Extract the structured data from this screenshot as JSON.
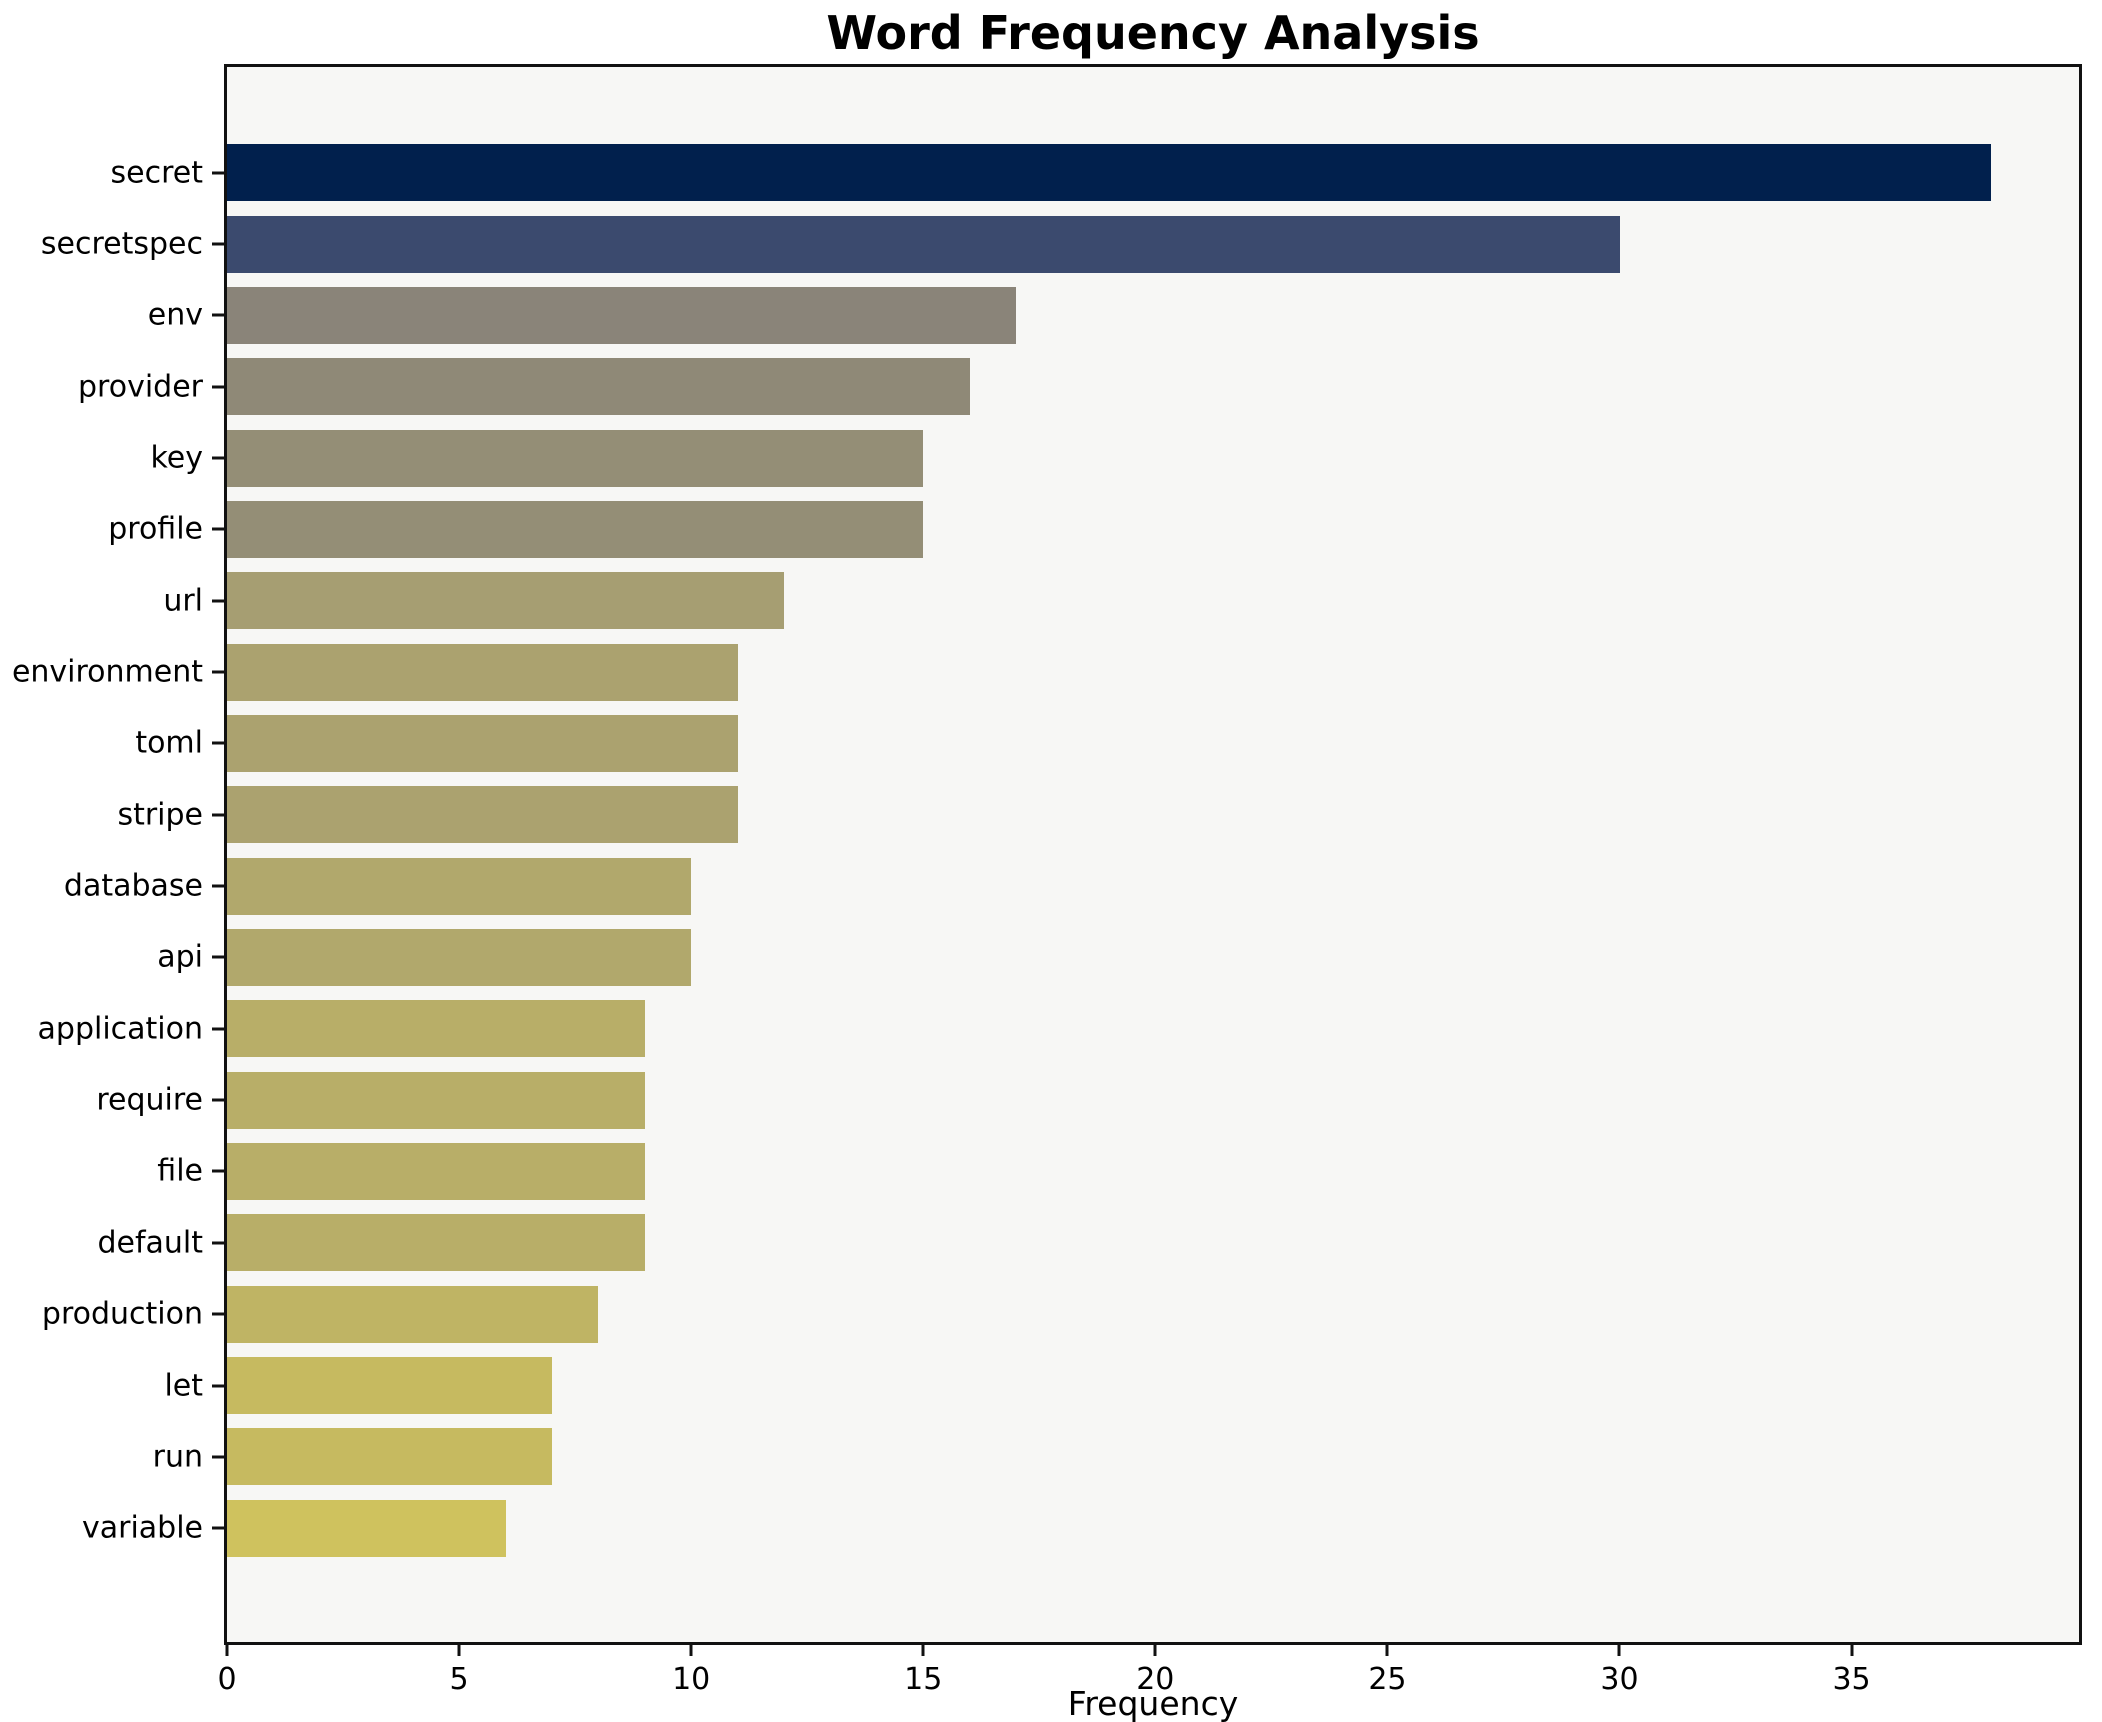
{
  "title": "Word Frequency Analysis",
  "chart_data": {
    "type": "bar",
    "orientation": "horizontal",
    "title": "Word Frequency Analysis",
    "xlabel": "Frequency",
    "ylabel": "",
    "categories": [
      "secret",
      "secretspec",
      "env",
      "provider",
      "key",
      "profile",
      "url",
      "environment",
      "toml",
      "stripe",
      "database",
      "api",
      "application",
      "require",
      "file",
      "default",
      "production",
      "let",
      "run",
      "variable"
    ],
    "values": [
      38,
      30,
      17,
      16,
      15,
      15,
      12,
      11,
      11,
      11,
      10,
      10,
      9,
      9,
      9,
      9,
      8,
      7,
      7,
      6
    ],
    "bar_colors": [
      "#01204d",
      "#3b4a6e",
      "#8a8479",
      "#8f8977",
      "#948e76",
      "#948e76",
      "#a69e72",
      "#aba26f",
      "#aba26f",
      "#aba26f",
      "#b1a86c",
      "#b1a86c",
      "#b8ae68",
      "#b8ae68",
      "#b8ae68",
      "#b8ae68",
      "#bfb464",
      "#c6ba60",
      "#c6ba60",
      "#cfc25e"
    ],
    "xticks": [
      0,
      5,
      10,
      15,
      20,
      25,
      30,
      35
    ],
    "xlim": [
      0,
      39.9
    ],
    "grid": false,
    "legend": false,
    "colormap": "cividis",
    "plot_background": "#f7f7f5",
    "figure_background": "#ffffff",
    "spine_color": "#111111",
    "text_color": "#000000"
  }
}
